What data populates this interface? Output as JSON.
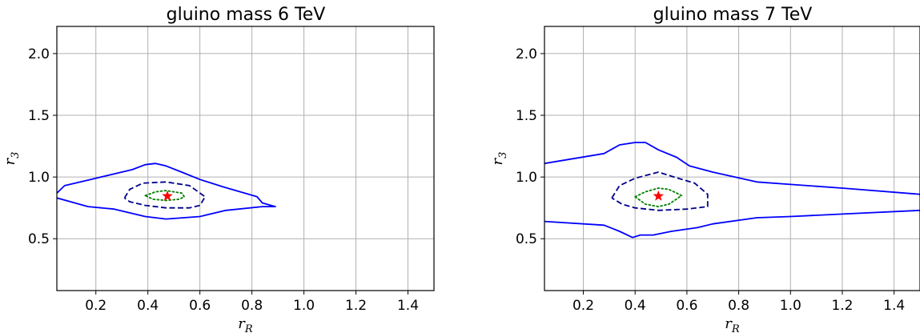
{
  "chart_data": [
    {
      "type": "line",
      "title": "gluino mass 6 TeV",
      "xlabel": "r_R",
      "ylabel": "r_3",
      "xlim": [
        0.05,
        1.5
      ],
      "ylim": [
        0.08,
        2.22
      ],
      "xticks": [
        0.2,
        0.4,
        0.6,
        0.8,
        1.0,
        1.2,
        1.4
      ],
      "xtick_labels": [
        "0.2",
        "0.4",
        "0.6",
        "0.8",
        "1.0",
        "1.2",
        "1.4"
      ],
      "yticks": [
        0.5,
        1.0,
        1.5,
        2.0
      ],
      "ytick_labels": [
        "0.5",
        "1.0",
        "1.5",
        "2.0"
      ],
      "grid": true,
      "series": [
        {
          "style": "solid",
          "color": "#0000ff",
          "x": [
            0.05,
            0.08,
            0.18,
            0.28,
            0.34,
            0.39,
            0.43,
            0.47,
            0.53,
            0.6,
            0.69,
            0.82,
            0.84,
            0.89,
            0.84,
            0.7,
            0.6,
            0.47,
            0.39,
            0.27,
            0.17,
            0.05
          ],
          "y": [
            0.87,
            0.93,
            0.98,
            1.03,
            1.06,
            1.1,
            1.11,
            1.09,
            1.04,
            0.98,
            0.92,
            0.84,
            0.79,
            0.76,
            0.76,
            0.73,
            0.68,
            0.66,
            0.68,
            0.74,
            0.76,
            0.83
          ]
        },
        {
          "style": "dashed",
          "color": "#00008b",
          "x": [
            0.31,
            0.33,
            0.38,
            0.47,
            0.56,
            0.62,
            0.6,
            0.56,
            0.47,
            0.39,
            0.33,
            0.31
          ],
          "y": [
            0.83,
            0.9,
            0.95,
            0.96,
            0.93,
            0.84,
            0.77,
            0.75,
            0.75,
            0.77,
            0.8,
            0.83
          ]
        },
        {
          "style": "dotted",
          "color": "#008000",
          "x": [
            0.39,
            0.43,
            0.47,
            0.53,
            0.54,
            0.52,
            0.47,
            0.42,
            0.39
          ],
          "y": [
            0.85,
            0.88,
            0.89,
            0.87,
            0.84,
            0.82,
            0.81,
            0.82,
            0.85
          ]
        }
      ],
      "best_fit": {
        "marker": "star",
        "color": "#ff0000",
        "x": 0.475,
        "y": 0.845
      }
    },
    {
      "type": "line",
      "title": "gluino mass 7 TeV",
      "xlabel": "r_R",
      "ylabel": "r_3",
      "xlim": [
        0.05,
        1.5
      ],
      "ylim": [
        0.08,
        2.22
      ],
      "xticks": [
        0.2,
        0.4,
        0.6,
        0.8,
        1.0,
        1.2,
        1.4
      ],
      "xtick_labels": [
        "0.2",
        "0.4",
        "0.6",
        "0.8",
        "1.0",
        "1.2",
        "1.4"
      ],
      "yticks": [
        0.5,
        1.0,
        1.5,
        2.0
      ],
      "ytick_labels": [
        "0.5",
        "1.0",
        "1.5",
        "2.0"
      ],
      "grid": true,
      "series": [
        {
          "style": "solid",
          "color": "#0000ff",
          "x": [
            0.05,
            0.28,
            0.34,
            0.4,
            0.44,
            0.49,
            0.56,
            0.61,
            0.7,
            0.87,
            1.0,
            1.2,
            1.5
          ],
          "y": [
            1.11,
            1.19,
            1.26,
            1.28,
            1.28,
            1.22,
            1.16,
            1.09,
            1.04,
            0.96,
            0.94,
            0.91,
            0.86
          ]
        },
        {
          "style": "solid",
          "color": "#0000ff",
          "x": [
            0.05,
            0.28,
            0.34,
            0.39,
            0.42,
            0.47,
            0.54,
            0.64,
            0.7,
            0.87,
            1.0,
            1.2,
            1.5
          ],
          "y": [
            0.64,
            0.61,
            0.56,
            0.51,
            0.53,
            0.53,
            0.56,
            0.59,
            0.62,
            0.67,
            0.68,
            0.7,
            0.73
          ]
        },
        {
          "style": "dashed",
          "color": "#00008b",
          "x": [
            0.31,
            0.34,
            0.4,
            0.49,
            0.55,
            0.63,
            0.68,
            0.68,
            0.6,
            0.49,
            0.4,
            0.35,
            0.31
          ],
          "y": [
            0.83,
            0.93,
            0.99,
            1.04,
            1.0,
            0.95,
            0.86,
            0.76,
            0.74,
            0.73,
            0.75,
            0.78,
            0.83
          ]
        },
        {
          "style": "dotted",
          "color": "#008000",
          "x": [
            0.4,
            0.44,
            0.49,
            0.53,
            0.58,
            0.53,
            0.49,
            0.44,
            0.4
          ],
          "y": [
            0.84,
            0.88,
            0.91,
            0.9,
            0.85,
            0.78,
            0.76,
            0.78,
            0.84
          ]
        }
      ],
      "best_fit": {
        "marker": "star",
        "color": "#ff0000",
        "x": 0.49,
        "y": 0.845
      }
    }
  ]
}
